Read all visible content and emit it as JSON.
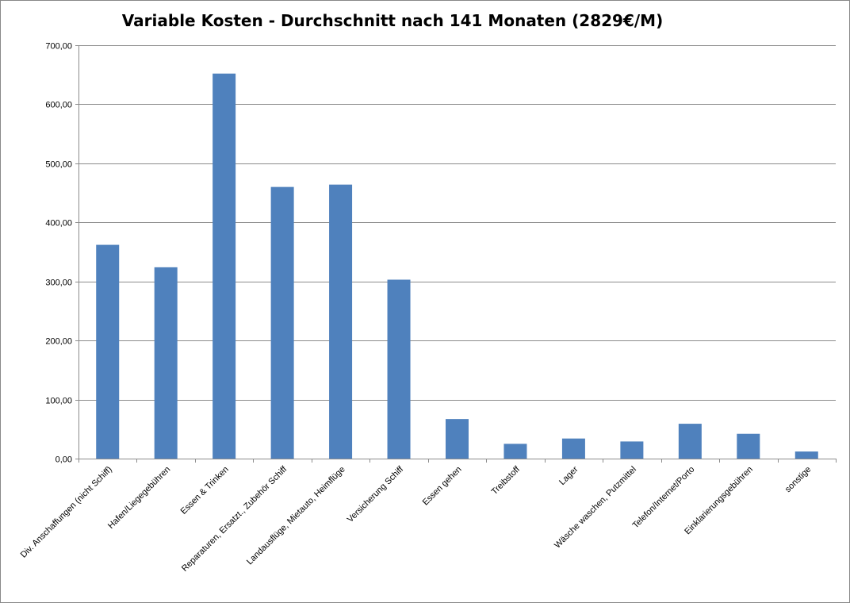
{
  "chart_data": {
    "type": "bar",
    "title": "Variable Kosten - Durchschnitt nach 141 Monaten (2829€/M)",
    "xlabel": "",
    "ylabel": "",
    "ylim": [
      0,
      700
    ],
    "yticks": [
      "0,00",
      "100,00",
      "200,00",
      "300,00",
      "400,00",
      "500,00",
      "600,00",
      "700,00"
    ],
    "grid": true,
    "legend": "none",
    "bar_color": "#4F81BD",
    "categories": [
      "Div. Anschaffungen (nicht Schiff)",
      "Hafen/Liegegebühren",
      "Essen & Trinken",
      "Reparaturen, Ersatzt., Zubehör Schiff",
      "Landausflüge, Mietauto, Heimflüge",
      "Versicherung Schiff",
      "Essen gehen",
      "Treibstoff",
      "Lager",
      "Wäsche waschen, Putzmittel",
      "Telefon/Internet/Porto",
      "Einklarierungsgebühren",
      "sonstige"
    ],
    "values": [
      362,
      324,
      652,
      460,
      464,
      303,
      67,
      25,
      34,
      29,
      59,
      42,
      12
    ]
  }
}
